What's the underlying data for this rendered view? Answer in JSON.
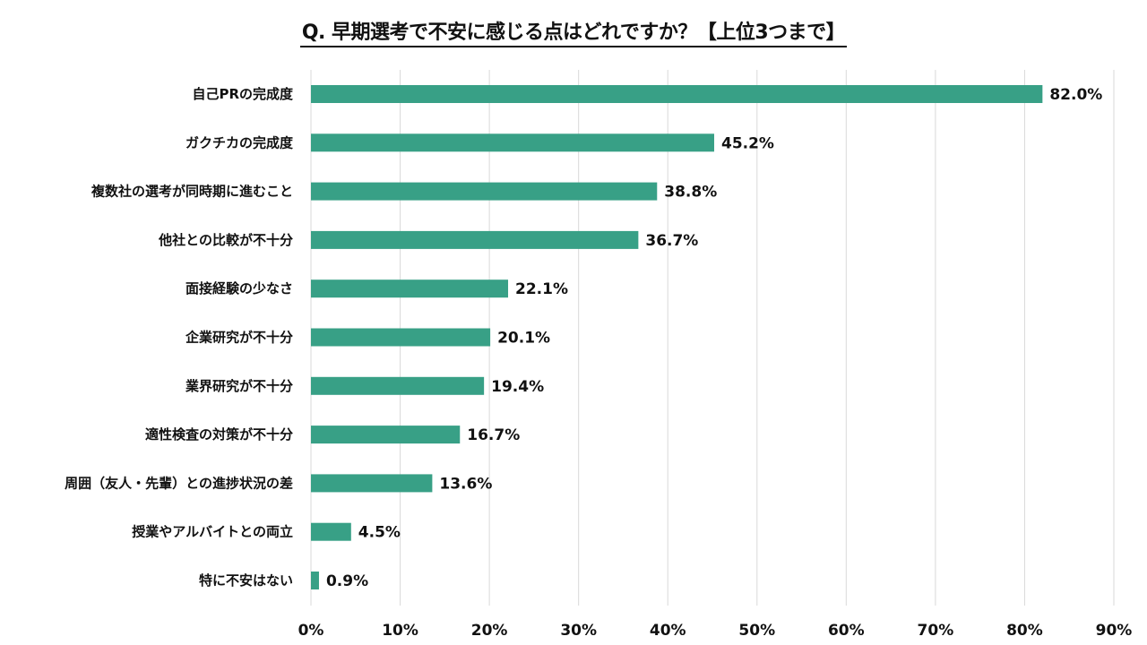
{
  "chart_data": {
    "type": "bar",
    "orientation": "horizontal",
    "title": "Q. 早期選考で不安に感じる点はどれですか？【上位3つまで】",
    "xlabel": "",
    "ylabel": "",
    "xlim": [
      0,
      90
    ],
    "x_ticks": [
      "0%",
      "10%",
      "20%",
      "30%",
      "40%",
      "50%",
      "60%",
      "70%",
      "80%",
      "90%"
    ],
    "x_tick_values": [
      0,
      10,
      20,
      30,
      40,
      50,
      60,
      70,
      80,
      90
    ],
    "grid": "vertical",
    "legend": "none",
    "bar_color": "#38a086",
    "categories": [
      "自己PRの完成度",
      "ガクチカの完成度",
      "複数社の選考が同時期に進むこと",
      "他社との比較が不十分",
      "面接経験の少なさ",
      "企業研究が不十分",
      "業界研究が不十分",
      "適性検査の対策が不十分",
      "周囲（友人・先輩）との進捗状況の差",
      "授業やアルバイトとの両立",
      "特に不安はない"
    ],
    "values": [
      82.0,
      45.2,
      38.8,
      36.7,
      22.1,
      20.1,
      19.4,
      16.7,
      13.6,
      4.5,
      0.9
    ],
    "value_labels": [
      "82.0%",
      "45.2%",
      "38.8%",
      "36.7%",
      "22.1%",
      "20.1%",
      "19.4%",
      "16.7%",
      "13.6%",
      "4.5%",
      "0.9%"
    ]
  }
}
